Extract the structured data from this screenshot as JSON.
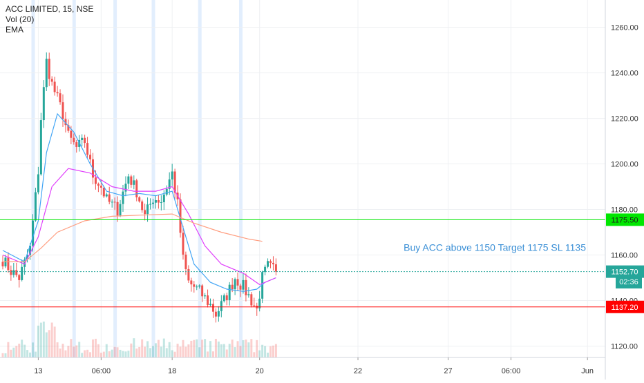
{
  "legend": {
    "symbol_line": "ACC LIMITED, 15, NSE",
    "volume_label": "Vol (20)",
    "ema_label": "EMA"
  },
  "countdown": "02:36",
  "annotation": "Buy ACC above 1150 Target 1175 SL 1135",
  "colors": {
    "up": "#26a69a",
    "down": "#ef5350",
    "ema_fast": "#42a5f5",
    "ema_mid": "#e040fb",
    "ema_slow": "#ff9e80",
    "target_line": "#00e600",
    "stop_line": "#ff0000",
    "last_price": "#26a69a",
    "annotation_text": "#3a8fd6",
    "session_highlight": "#dbeafc"
  },
  "chart_data": {
    "type": "candlestick",
    "title": "ACC LIMITED, 15, NSE",
    "y_axis": {
      "ticks": [
        1120,
        1140,
        1160,
        1180,
        1200,
        1220,
        1240,
        1260
      ],
      "tick_labels": [
        "1120.00",
        "1140.00",
        "1160.00",
        "1180.00",
        "1200.00",
        "1220.00",
        "1240.00",
        "1260.00"
      ],
      "range": [
        1115,
        1272
      ],
      "position": "right"
    },
    "x_axis": {
      "tick_labels": [
        "13",
        "06:00",
        "18",
        "20",
        "22",
        "27",
        "06:00",
        "Jun"
      ],
      "bar_index": [
        13,
        36,
        62,
        94,
        130,
        163,
        186,
        214
      ],
      "domain": [
        0,
        218
      ]
    },
    "grid": true,
    "horizontal_lines": [
      {
        "label": "1175.50",
        "value": 1175.5,
        "style": "solid",
        "color": "#00e600"
      },
      {
        "label": "1137.20",
        "value": 1137.2,
        "style": "solid",
        "color": "#ff0000"
      },
      {
        "label": "1152.70",
        "value": 1152.7,
        "style": "dotted",
        "color": "#26a69a",
        "role": "last price"
      }
    ],
    "key_points": [
      {
        "bar": 0,
        "price": 1158
      },
      {
        "bar": 3,
        "price": 1153
      },
      {
        "bar": 6,
        "price": 1150
      },
      {
        "bar": 10,
        "price": 1163
      },
      {
        "bar": 13,
        "price": 1197
      },
      {
        "bar": 14,
        "price": 1220
      },
      {
        "bar": 16,
        "price": 1245
      },
      {
        "bar": 18,
        "price": 1235
      },
      {
        "bar": 22,
        "price": 1222
      },
      {
        "bar": 24,
        "price": 1212
      },
      {
        "bar": 27,
        "price": 1207
      },
      {
        "bar": 30,
        "price": 1210
      },
      {
        "bar": 33,
        "price": 1195
      },
      {
        "bar": 36,
        "price": 1190
      },
      {
        "bar": 38,
        "price": 1184
      },
      {
        "bar": 42,
        "price": 1180
      },
      {
        "bar": 46,
        "price": 1195
      },
      {
        "bar": 49,
        "price": 1188
      },
      {
        "bar": 52,
        "price": 1177
      },
      {
        "bar": 55,
        "price": 1185
      },
      {
        "bar": 58,
        "price": 1184
      },
      {
        "bar": 62,
        "price": 1196
      },
      {
        "bar": 64,
        "price": 1182
      },
      {
        "bar": 66,
        "price": 1158
      },
      {
        "bar": 68,
        "price": 1148
      },
      {
        "bar": 72,
        "price": 1144
      },
      {
        "bar": 76,
        "price": 1138
      },
      {
        "bar": 78,
        "price": 1134
      },
      {
        "bar": 81,
        "price": 1140
      },
      {
        "bar": 85,
        "price": 1150
      },
      {
        "bar": 88,
        "price": 1146
      },
      {
        "bar": 91,
        "price": 1140
      },
      {
        "bar": 93,
        "price": 1136
      },
      {
        "bar": 95,
        "price": 1150
      },
      {
        "bar": 97,
        "price": 1155
      },
      {
        "bar": 100,
        "price": 1152.7
      }
    ],
    "ema_series": [
      {
        "role": "fast",
        "color": "#42a5f5",
        "points": [
          [
            0,
            1162
          ],
          [
            8,
            1157
          ],
          [
            13,
            1175
          ],
          [
            16,
            1205
          ],
          [
            20,
            1222
          ],
          [
            26,
            1214
          ],
          [
            32,
            1200
          ],
          [
            38,
            1188
          ],
          [
            44,
            1186
          ],
          [
            50,
            1187
          ],
          [
            56,
            1186
          ],
          [
            62,
            1188
          ],
          [
            66,
            1172
          ],
          [
            70,
            1156
          ],
          [
            76,
            1148
          ],
          [
            82,
            1145
          ],
          [
            88,
            1144
          ],
          [
            93,
            1145
          ],
          [
            96,
            1148
          ],
          [
            100,
            1150
          ]
        ]
      },
      {
        "role": "mid",
        "color": "#e040fb",
        "points": [
          [
            0,
            1160
          ],
          [
            8,
            1156
          ],
          [
            13,
            1168
          ],
          [
            18,
            1190
          ],
          [
            24,
            1198
          ],
          [
            32,
            1196
          ],
          [
            40,
            1190
          ],
          [
            48,
            1188
          ],
          [
            56,
            1188
          ],
          [
            62,
            1190
          ],
          [
            68,
            1178
          ],
          [
            74,
            1164
          ],
          [
            80,
            1156
          ],
          [
            88,
            1152
          ],
          [
            94,
            1147
          ],
          [
            100,
            1150
          ]
        ]
      },
      {
        "role": "slow",
        "color": "#ff9e80",
        "points": [
          [
            0,
            1157
          ],
          [
            8,
            1157
          ],
          [
            14,
            1163
          ],
          [
            20,
            1170
          ],
          [
            30,
            1175
          ],
          [
            40,
            1177
          ],
          [
            50,
            1177.5
          ],
          [
            62,
            1178
          ],
          [
            70,
            1174
          ],
          [
            80,
            1170
          ],
          [
            90,
            1167
          ],
          [
            95,
            1166
          ]
        ]
      }
    ],
    "session_highlights_bar_index": [
      11,
      26,
      41,
      55,
      72,
      87
    ]
  }
}
